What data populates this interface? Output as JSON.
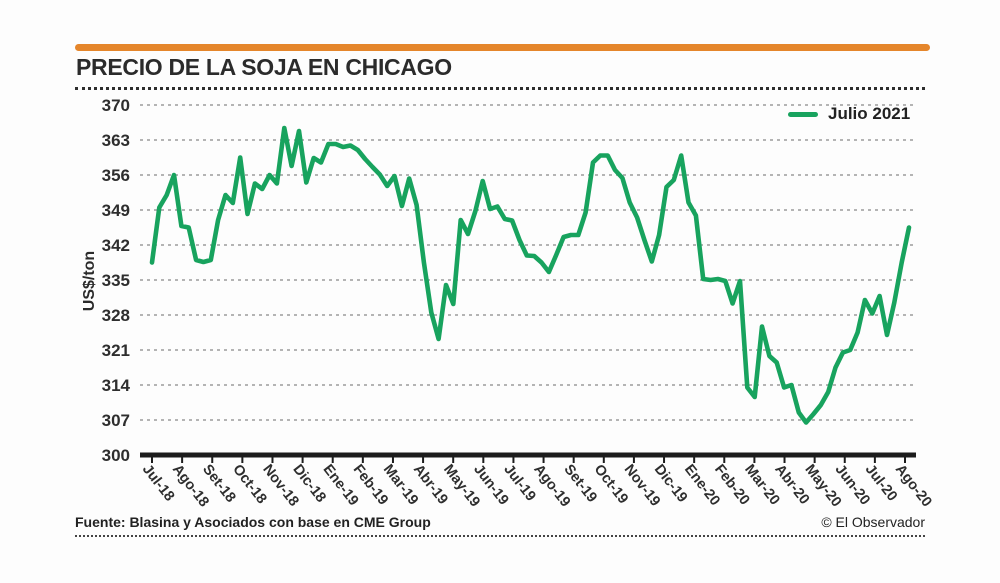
{
  "header": {
    "title": "PRECIO DE LA SOJA EN CHICAGO"
  },
  "legend": {
    "label": "Julio 2021"
  },
  "footer": {
    "source": "Fuente: Blasina y Asociados con base en CME Group",
    "credit": "© El Observador"
  },
  "colors": {
    "accent_bar": "#E5862B",
    "line": "#18A35E",
    "grid": "#9b9b9b",
    "axis": "#1c1c1c",
    "text": "#2e2e2e"
  },
  "chart_data": {
    "type": "line",
    "title": "PRECIO DE LA SOJA EN CHICAGO",
    "xlabel": "",
    "ylabel": "US$/ton",
    "ylim": [
      300,
      370
    ],
    "y_ticks": [
      370,
      363,
      356,
      349,
      342,
      335,
      328,
      321,
      314,
      307,
      300
    ],
    "grid": "dashed-horizontal",
    "legend_position": "top-right",
    "categories": [
      "Jul-18",
      "Ago-18",
      "Set-18",
      "Oct-18",
      "Nov-18",
      "Dic-18",
      "Ene-19",
      "Feb-19",
      "Mar-19",
      "Abr-19",
      "May-19",
      "Jun-19",
      "Jul-19",
      "Ago-19",
      "Set-19",
      "Oct-19",
      "Nov-19",
      "Dic-19",
      "Ene-20",
      "Feb-20",
      "Mar-20",
      "Abr-20",
      "May-20",
      "Jun-20",
      "Jul-20",
      "Ago-20"
    ],
    "points_per_month": 4,
    "series": [
      {
        "name": "Julio 2021",
        "color": "#18A35E",
        "values": [
          338.5,
          349.5,
          352.0,
          356.0,
          345.8,
          345.5,
          339.0,
          338.6,
          339.0,
          347.0,
          352.0,
          350.4,
          359.5,
          348.2,
          354.3,
          353.2,
          356.0,
          354.3,
          365.4,
          357.8,
          364.8,
          354.5,
          359.4,
          358.5,
          362.2,
          362.2,
          361.6,
          361.9,
          361.0,
          359.2,
          357.6,
          356.1,
          353.8,
          355.8,
          349.8,
          355.3,
          350.0,
          338.5,
          328.5,
          323.2,
          334.0,
          330.2,
          347.0,
          344.2,
          348.8,
          354.8,
          349.2,
          349.7,
          347.2,
          346.9,
          343.0,
          339.9,
          339.8,
          338.5,
          336.6,
          340.0,
          343.6,
          344.0,
          344.0,
          348.5,
          358.5,
          359.9,
          359.9,
          357.0,
          355.4,
          350.5,
          347.5,
          343.0,
          338.7,
          344.0,
          353.6,
          355.0,
          359.9,
          350.5,
          347.9,
          335.2,
          335.0,
          335.2,
          334.8,
          330.3,
          334.8,
          313.5,
          311.6,
          325.7,
          319.8,
          318.5,
          313.5,
          314.0,
          308.5,
          306.5,
          308.2,
          310.0,
          312.6,
          317.5,
          320.5,
          321.0,
          324.5,
          331.0,
          328.3,
          331.8,
          324.0,
          330.5,
          338.5,
          345.5
        ]
      }
    ]
  }
}
